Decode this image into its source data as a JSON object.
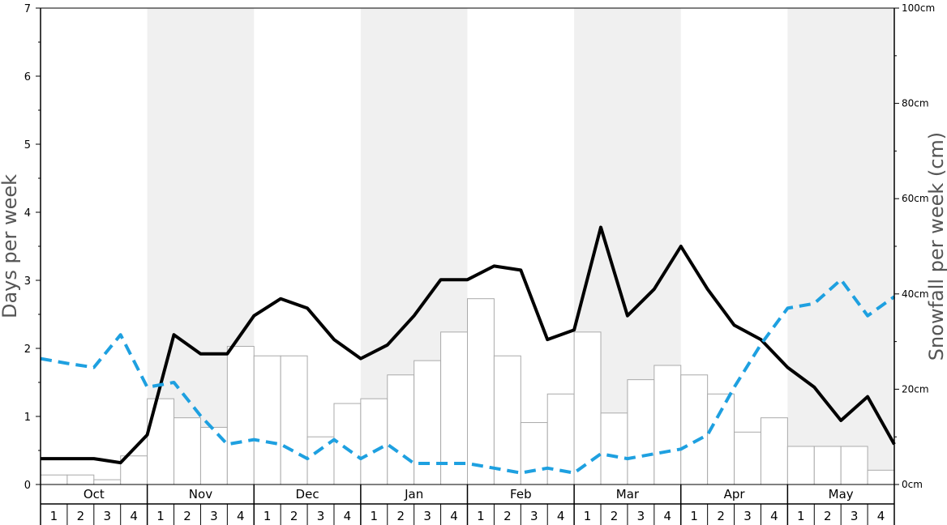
{
  "chart_data": {
    "type": "bar",
    "months": [
      "Oct",
      "Nov",
      "Dec",
      "Jan",
      "Feb",
      "Mar",
      "Apr",
      "May"
    ],
    "weeks": [
      "1",
      "2",
      "3",
      "4"
    ],
    "ylabel": "Days per week",
    "ylabel_right": "Snowfall per week (cm)",
    "ylim": [
      0,
      7
    ],
    "ylim_right": [
      0,
      100
    ],
    "yticks": [
      "0",
      "1",
      "2",
      "3",
      "4",
      "5",
      "6",
      "7"
    ],
    "yticks_right": [
      "0cm",
      "20cm",
      "40cm",
      "60cm",
      "80cm",
      "100cm"
    ],
    "shaded_months": [
      1,
      3,
      5,
      7
    ],
    "series": [
      {
        "style": "bar",
        "axis": "right",
        "values": [
          2,
          2,
          1,
          6,
          18,
          14,
          12,
          29,
          27,
          27,
          10,
          17,
          18,
          23,
          26,
          32,
          39,
          27,
          13,
          19,
          32,
          15,
          22,
          25,
          23,
          19,
          11,
          14,
          8,
          8,
          8,
          3
        ]
      },
      {
        "style": "solid-line",
        "axis": "left",
        "color": "#000000",
        "values": [
          0.38,
          0.38,
          0.38,
          0.32,
          0.73,
          2.2,
          1.92,
          1.92,
          2.48,
          2.73,
          2.59,
          2.13,
          1.85,
          2.05,
          2.48,
          3.01,
          3.01,
          3.21,
          3.15,
          2.13,
          2.27,
          3.78,
          2.48,
          2.87,
          3.5,
          2.87,
          2.34,
          2.13,
          1.72,
          1.43,
          0.94,
          1.29,
          0.59
        ]
      },
      {
        "style": "dashed-line",
        "axis": "left",
        "color": "#1ea0e0",
        "values": [
          1.85,
          1.78,
          1.72,
          2.2,
          1.43,
          1.5,
          1.01,
          0.59,
          0.66,
          0.59,
          0.38,
          0.66,
          0.38,
          0.59,
          0.31,
          0.31,
          0.31,
          0.24,
          0.17,
          0.24,
          0.17,
          0.45,
          0.38,
          0.45,
          0.52,
          0.73,
          1.43,
          2.06,
          2.59,
          2.66,
          3.01,
          2.48,
          2.76
        ]
      }
    ]
  }
}
